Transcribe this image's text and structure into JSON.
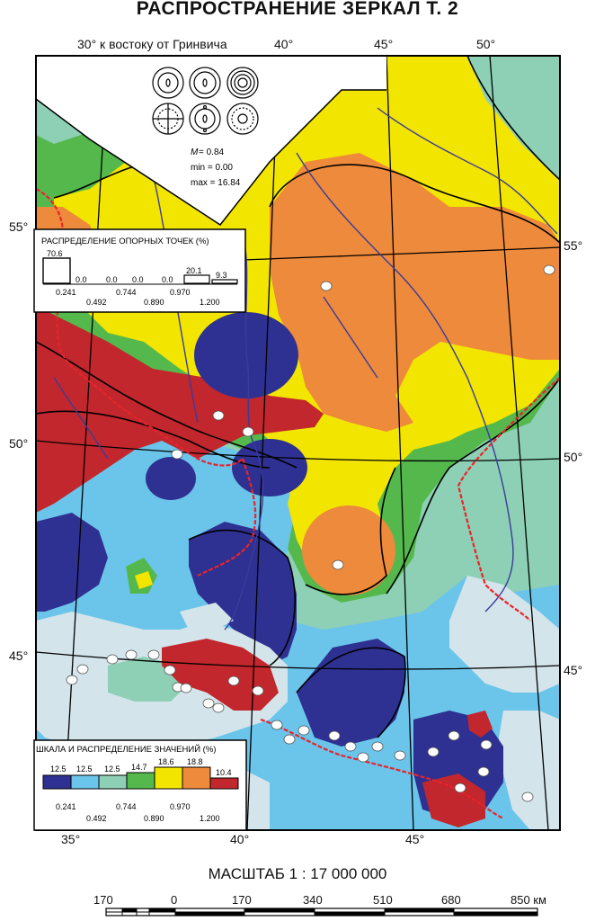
{
  "title": "РАСПРОСТРАНЕНИЕ ЗЕРКАЛ Т. 2",
  "top_axis": {
    "caption": "30° к востоку от Гринвича",
    "labels": [
      "40°",
      "45°",
      "50°"
    ]
  },
  "bottom_axis": {
    "labels": [
      "35°",
      "40°",
      "45°"
    ]
  },
  "left_lat_labels": [
    "55°",
    "50°",
    "45°"
  ],
  "right_lat_labels": [
    "55°",
    "50°",
    "45°"
  ],
  "stats": {
    "m_label": "M",
    "m_value": "= 0.84",
    "min": "min = 0.00",
    "max": "max = 16.84"
  },
  "ref_points_legend": {
    "title": "РАСПРЕДЕЛЕНИЕ ОПОРНЫХ ТОЧЕК (%)",
    "values": [
      "70.6",
      "0.0",
      "0.0",
      "0.0",
      "0.0",
      "20.1",
      "9.3"
    ],
    "breaks_top": [
      "0.241",
      "0.744",
      "0.970"
    ],
    "breaks_bottom": [
      "0.492",
      "0.890",
      "1.200"
    ]
  },
  "scale_legend": {
    "title": "ШКАЛА И РАСПРЕДЕЛЕНИЕ ЗНАЧЕНИЙ (%)",
    "values": [
      "12.5",
      "12.5",
      "12.5",
      "14.7",
      "18.6",
      "18.8",
      "10.4"
    ],
    "breaks_top": [
      "0.241",
      "0.744",
      "0.970"
    ],
    "breaks_bottom": [
      "0.492",
      "0.890",
      "1.200"
    ],
    "colors": [
      "#2e3191",
      "#6bc4ea",
      "#8ed0b5",
      "#54b84d",
      "#f2e500",
      "#ee8a3b",
      "#c1272d"
    ]
  },
  "scale": {
    "title": "МАСШТАБ 1 : 17 000 000",
    "labels": [
      "170",
      "0",
      "170",
      "340",
      "510",
      "680",
      "850 км"
    ]
  },
  "colors": {
    "class1": "#2e3191",
    "class2": "#6bc4ea",
    "class3": "#8ed0b5",
    "class4": "#54b84d",
    "class5": "#f2e500",
    "class6": "#ee8a3b",
    "class7": "#c1272d",
    "sea": "#d3e4ea",
    "border": "#e8242b",
    "river": "#3b3b9b"
  }
}
